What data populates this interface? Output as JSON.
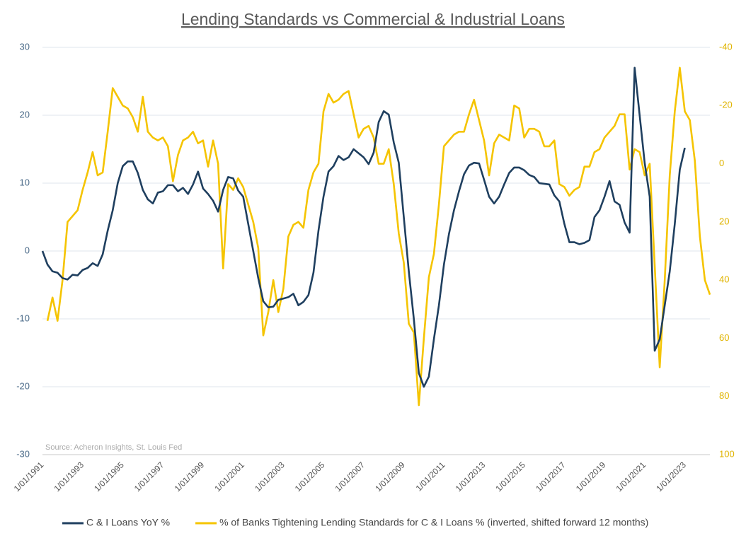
{
  "chart_data": {
    "type": "line",
    "title": "Lending Standards vs Commercial & Industrial Loans",
    "source": "Source: Acheron Insights, St. Louis Fed",
    "categories": [
      "1/01/1991",
      null,
      null,
      null,
      null,
      null,
      null,
      null,
      "1/01/1993",
      null,
      null,
      null,
      null,
      null,
      null,
      null,
      "1/01/1995",
      null,
      null,
      null,
      null,
      null,
      null,
      null,
      "1/01/1997",
      null,
      null,
      null,
      null,
      null,
      null,
      null,
      "1/01/1999",
      null,
      null,
      null,
      null,
      null,
      null,
      null,
      "1/01/2001",
      null,
      null,
      null,
      null,
      null,
      null,
      null,
      "1/01/2003",
      null,
      null,
      null,
      null,
      null,
      null,
      null,
      "1/01/2005",
      null,
      null,
      null,
      null,
      null,
      null,
      null,
      "1/01/2007",
      null,
      null,
      null,
      null,
      null,
      null,
      null,
      "1/01/2009",
      null,
      null,
      null,
      null,
      null,
      null,
      null,
      "1/01/2011",
      null,
      null,
      null,
      null,
      null,
      null,
      null,
      "1/01/2013",
      null,
      null,
      null,
      null,
      null,
      null,
      null,
      "1/01/2015",
      null,
      null,
      null,
      null,
      null,
      null,
      null,
      "1/01/2017",
      null,
      null,
      null,
      null,
      null,
      null,
      null,
      "1/01/2019",
      null,
      null,
      null,
      null,
      null,
      null,
      null,
      "1/01/2021",
      null,
      null,
      null,
      null,
      null,
      null,
      null,
      "1/01/2023",
      null,
      null,
      null,
      null,
      null
    ],
    "series": [
      {
        "name": "C & I Loans YoY %",
        "color": "#1f3f5f",
        "axis": "y",
        "values": [
          0,
          -2,
          -3,
          -3.2,
          -4,
          -4.2,
          -3.5,
          -3.6,
          -2.8,
          -2.5,
          -1.8,
          -2.2,
          -0.5,
          3,
          6,
          10,
          12.5,
          13.2,
          13.2,
          11.5,
          9,
          7.6,
          7,
          8.6,
          8.8,
          9.7,
          9.7,
          8.8,
          9.3,
          8.4,
          9.8,
          11.7,
          9.2,
          8.4,
          7.4,
          5.8,
          9,
          10.9,
          10.7,
          8.9,
          8,
          4,
          0,
          -4,
          -7.4,
          -8.3,
          -8.2,
          -7.2,
          -7,
          -6.8,
          -6.3,
          -8,
          -7.5,
          -6.5,
          -3.2,
          3,
          8,
          11.7,
          12.5,
          14,
          13.4,
          13.8,
          15,
          14.4,
          13.8,
          12.8,
          14.5,
          19,
          20.6,
          20.1,
          16,
          13,
          5,
          -3,
          -10,
          -18,
          -20,
          -18.5,
          -13,
          -8,
          -2,
          2.5,
          6,
          8.8,
          11.3,
          12.6,
          13,
          12.9,
          10.5,
          8,
          7,
          8,
          9.8,
          11.5,
          12.3,
          12.3,
          11.9,
          11.2,
          10.9,
          10,
          9.9,
          9.8,
          8.2,
          7.3,
          4,
          1.3,
          1.3,
          1,
          1.2,
          1.6,
          5,
          6,
          8,
          10.3,
          7.3,
          6.8,
          4.2,
          2.7,
          27,
          20,
          13,
          8,
          -14.7,
          -13,
          -8,
          -3,
          4,
          12,
          15.2,
          null,
          null,
          null,
          null,
          null
        ]
      },
      {
        "name": "% of Banks Tightening Lending Standards for C & I Loans % (inverted, shifted forward 12 months)",
        "color": "#f5c400",
        "axis": "y2",
        "values": [
          null,
          54,
          46,
          54,
          40,
          20,
          18,
          16,
          9,
          3,
          -4,
          4,
          3,
          -11,
          -26,
          -23,
          -20,
          -19,
          -16,
          -11,
          -23,
          -11,
          -9,
          -8,
          -9,
          -6,
          6,
          -3,
          -8,
          -9,
          -11,
          -7,
          -8,
          1,
          -8,
          0,
          36,
          7,
          9,
          5,
          8,
          14,
          20,
          29,
          59,
          51,
          40,
          51,
          43,
          25,
          21,
          20,
          22,
          9,
          3,
          0,
          -18,
          -24,
          -21,
          -22,
          -24,
          -25,
          -17,
          -9,
          -12,
          -13,
          -9,
          0,
          0,
          -5,
          7,
          24,
          34,
          55,
          58,
          83,
          60,
          39,
          31,
          14,
          -6,
          -8,
          -10,
          -11,
          -11,
          -17,
          -22,
          -15,
          -8,
          4,
          -7,
          -10,
          -9,
          -8,
          -20,
          -19,
          -9,
          -12,
          -12,
          -11,
          -6,
          -6,
          -8,
          7,
          8,
          11,
          9,
          8,
          1,
          1,
          -4,
          -5,
          -9,
          -11,
          -13,
          -17,
          -17,
          2,
          -5,
          -4,
          4,
          0,
          35,
          70,
          40,
          4,
          -18,
          -33,
          -18,
          -15,
          -1,
          25,
          40,
          45
        ]
      }
    ],
    "ylim": [
      -30,
      30
    ],
    "yticks": [
      -30,
      -20,
      -10,
      0,
      10,
      20,
      30
    ],
    "y2lim": [
      100,
      -40
    ],
    "y2ticks": [
      -40,
      -20,
      0,
      20,
      40,
      60,
      80,
      100
    ],
    "grid": true,
    "legend": "bottom"
  }
}
